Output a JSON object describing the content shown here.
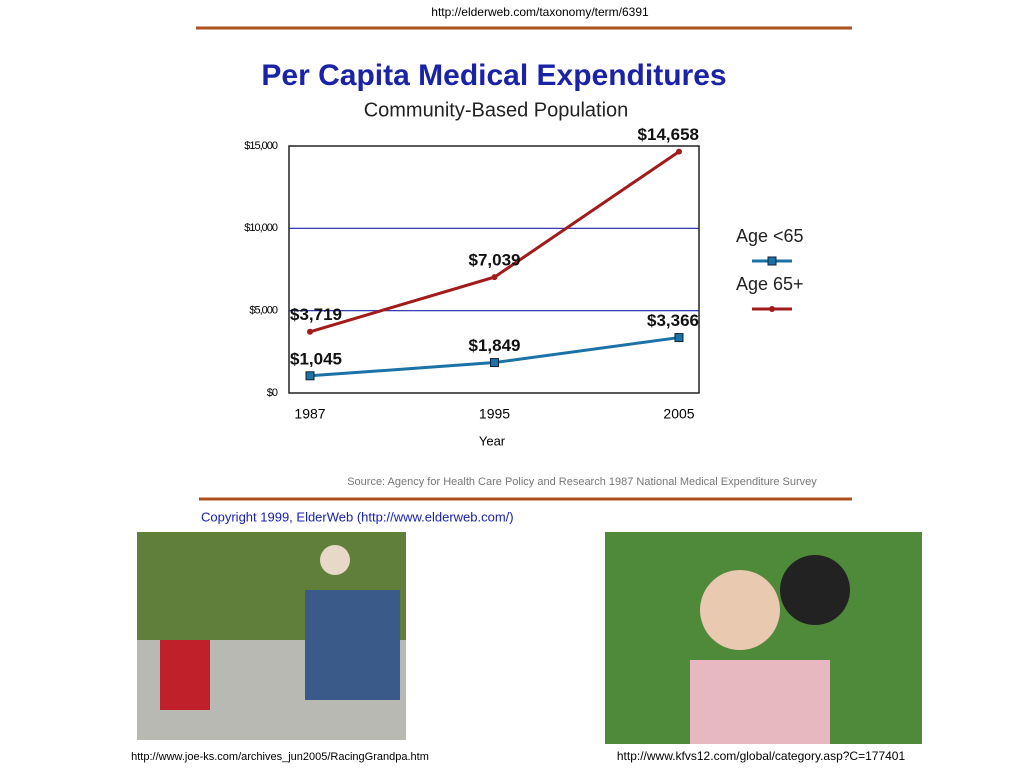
{
  "page_url": "http://elderweb.com/taxonomy/term/6391",
  "chart_data": {
    "type": "line",
    "title": "Per Capita Medical Expenditures",
    "subtitle": "Community-Based Population",
    "xlabel": "Year",
    "categories": [
      "1987",
      "1995",
      "2005"
    ],
    "series": [
      {
        "name": "Age <65",
        "color": "#1a72a6",
        "values": [
          1045,
          1849,
          3366
        ],
        "value_labels": [
          "$1,045",
          "$1,849",
          "$3,366"
        ]
      },
      {
        "name": "Age 65+",
        "color": "#a31a1a",
        "values": [
          3719,
          7039,
          14658
        ],
        "value_labels": [
          "$3,719",
          "$7,039",
          "$14,658"
        ]
      }
    ],
    "ylim": [
      0,
      15000
    ],
    "yticks": [
      {
        "value": 0,
        "label": "$0"
      },
      {
        "value": 5000,
        "label": "$5,000"
      },
      {
        "value": 10000,
        "label": "$10,000"
      },
      {
        "value": 15000,
        "label": "$15,000"
      }
    ],
    "grid": true,
    "legend": "right",
    "source": "Source: Agency for Health Care Policy and Research 1987 National Medical Expenditure Survey",
    "copyright": "Copyright 1999, ElderWeb (http://www.elderweb.com/)"
  },
  "photos": [
    {
      "caption": "http://www.joe-ks.com/archives_jun2005/RacingGrandpa.htm"
    },
    {
      "caption": "http://www.kfvs12.com/global/category.asp?C=177401"
    }
  ]
}
